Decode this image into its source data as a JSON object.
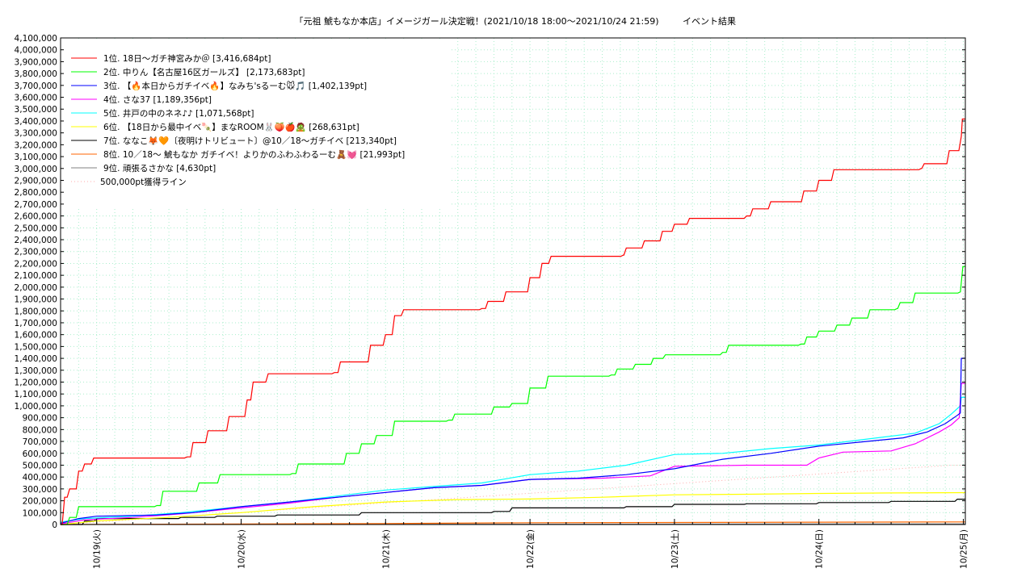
{
  "chart_data": {
    "type": "line",
    "title": "「元祖 鯱もなか本店」イメージガール決定戦！(2021/10/18 18:00～2021/10/24 21:59)",
    "subtitle": "イベント結果",
    "xlabel": "",
    "ylabel": "",
    "xlim": [
      "2021-10-18T18:00",
      "2021-10-25T00:20"
    ],
    "ylim": [
      0,
      4100000
    ],
    "y_ticks": [
      "0",
      "100,000",
      "200,000",
      "300,000",
      "400,000",
      "500,000",
      "600,000",
      "700,000",
      "800,000",
      "900,000",
      "1,000,000",
      "1,100,000",
      "1,200,000",
      "1,300,000",
      "1,400,000",
      "1,500,000",
      "1,600,000",
      "1,700,000",
      "1,800,000",
      "1,900,000",
      "2,000,000",
      "2,100,000",
      "2,200,000",
      "2,300,000",
      "2,400,000",
      "2,500,000",
      "2,600,000",
      "2,700,000",
      "2,800,000",
      "2,900,000",
      "3,000,000",
      "3,100,000",
      "3,200,000",
      "3,300,000",
      "3,400,000",
      "3,500,000",
      "3,600,000",
      "3,700,000",
      "3,800,000",
      "3,900,000",
      "4,000,000",
      "4,100,000"
    ],
    "x_ticks": [
      {
        "label": "10/19(火)",
        "t": "2021-10-19T00:00"
      },
      {
        "label": "10/20(水)",
        "t": "2021-10-20T00:00"
      },
      {
        "label": "10/21(木)",
        "t": "2021-10-21T00:00"
      },
      {
        "label": "10/22(金)",
        "t": "2021-10-22T00:00"
      },
      {
        "label": "10/23(土)",
        "t": "2021-10-23T00:00"
      },
      {
        "label": "10/24(日)",
        "t": "2021-10-24T00:00"
      },
      {
        "label": "10/25(月)",
        "t": "2021-10-25T00:00"
      }
    ],
    "grid": true,
    "legend_position": "top-left",
    "series": [
      {
        "name": "1位. 18日〜ガチ神宮みか＠ [3,416,684pt]",
        "color": "#ff0000",
        "step": true,
        "points": [
          [
            "2021-10-18T18:00",
            0
          ],
          [
            "2021-10-18T18:40",
            230000
          ],
          [
            "2021-10-18T19:30",
            300000
          ],
          [
            "2021-10-18T21:00",
            450000
          ],
          [
            "2021-10-18T22:00",
            510000
          ],
          [
            "2021-10-18T23:30",
            560000
          ],
          [
            "2021-10-19T15:00",
            570000
          ],
          [
            "2021-10-19T16:00",
            690000
          ],
          [
            "2021-10-19T18:30",
            790000
          ],
          [
            "2021-10-19T22:00",
            910000
          ],
          [
            "2021-10-20T01:00",
            1050000
          ],
          [
            "2021-10-20T02:00",
            1200000
          ],
          [
            "2021-10-20T04:30",
            1270000
          ],
          [
            "2021-10-20T15:30",
            1280000
          ],
          [
            "2021-10-20T16:30",
            1370000
          ],
          [
            "2021-10-20T21:30",
            1510000
          ],
          [
            "2021-10-21T00:00",
            1600000
          ],
          [
            "2021-10-21T01:30",
            1760000
          ],
          [
            "2021-10-21T03:00",
            1810000
          ],
          [
            "2021-10-21T16:00",
            1820000
          ],
          [
            "2021-10-21T17:00",
            1880000
          ],
          [
            "2021-10-21T20:00",
            1960000
          ],
          [
            "2021-10-22T00:00",
            2080000
          ],
          [
            "2021-10-22T02:00",
            2200000
          ],
          [
            "2021-10-22T03:30",
            2260000
          ],
          [
            "2021-10-22T15:30",
            2270000
          ],
          [
            "2021-10-22T16:00",
            2330000
          ],
          [
            "2021-10-22T19:00",
            2390000
          ],
          [
            "2021-10-22T22:00",
            2470000
          ],
          [
            "2021-10-23T00:00",
            2530000
          ],
          [
            "2021-10-23T02:30",
            2580000
          ],
          [
            "2021-10-23T12:00",
            2600000
          ],
          [
            "2021-10-23T13:00",
            2660000
          ],
          [
            "2021-10-23T16:00",
            2720000
          ],
          [
            "2021-10-23T21:30",
            2810000
          ],
          [
            "2021-10-24T00:00",
            2900000
          ],
          [
            "2021-10-24T02:30",
            2990000
          ],
          [
            "2021-10-24T17:00",
            3000000
          ],
          [
            "2021-10-24T17:30",
            3040000
          ],
          [
            "2021-10-24T21:40",
            3150000
          ],
          [
            "2021-10-24T23:40",
            3270000
          ],
          [
            "2021-10-24T23:50",
            3416684
          ],
          [
            "2021-10-25T00:20",
            3416684
          ]
        ]
      },
      {
        "name": "2位. 中りん【名古屋16区ガールズ】 [2,173,683pt]",
        "color": "#00ff00",
        "step": true,
        "points": [
          [
            "2021-10-18T18:00",
            0
          ],
          [
            "2021-10-18T19:30",
            60000
          ],
          [
            "2021-10-18T21:00",
            150000
          ],
          [
            "2021-10-19T10:00",
            160000
          ],
          [
            "2021-10-19T11:00",
            280000
          ],
          [
            "2021-10-19T17:00",
            350000
          ],
          [
            "2021-10-19T20:30",
            420000
          ],
          [
            "2021-10-20T08:30",
            430000
          ],
          [
            "2021-10-20T09:30",
            510000
          ],
          [
            "2021-10-20T17:30",
            600000
          ],
          [
            "2021-10-20T20:00",
            680000
          ],
          [
            "2021-10-20T22:30",
            750000
          ],
          [
            "2021-10-21T01:30",
            870000
          ],
          [
            "2021-10-21T10:30",
            880000
          ],
          [
            "2021-10-21T11:30",
            930000
          ],
          [
            "2021-10-21T18:00",
            990000
          ],
          [
            "2021-10-21T21:00",
            1020000
          ],
          [
            "2021-10-22T00:00",
            1150000
          ],
          [
            "2021-10-22T03:00",
            1250000
          ],
          [
            "2021-10-22T13:30",
            1260000
          ],
          [
            "2021-10-22T14:30",
            1310000
          ],
          [
            "2021-10-22T17:30",
            1350000
          ],
          [
            "2021-10-22T20:30",
            1400000
          ],
          [
            "2021-10-22T22:30",
            1430000
          ],
          [
            "2021-10-23T08:00",
            1450000
          ],
          [
            "2021-10-23T09:00",
            1510000
          ],
          [
            "2021-10-23T21:00",
            1520000
          ],
          [
            "2021-10-23T22:00",
            1580000
          ],
          [
            "2021-10-24T00:00",
            1630000
          ],
          [
            "2021-10-24T03:00",
            1680000
          ],
          [
            "2021-10-24T05:30",
            1740000
          ],
          [
            "2021-10-24T08:30",
            1810000
          ],
          [
            "2021-10-24T13:00",
            1820000
          ],
          [
            "2021-10-24T13:30",
            1870000
          ],
          [
            "2021-10-24T16:00",
            1950000
          ],
          [
            "2021-10-24T23:30",
            1960000
          ],
          [
            "2021-10-24T23:55",
            2173683
          ],
          [
            "2021-10-25T00:20",
            2173683
          ]
        ]
      },
      {
        "name": "3位. 【🔥本日からガチイベ🔥】なみち'sるーむ🐭🎵 [1,402,139pt]",
        "color": "#0000ff",
        "step": false,
        "points": [
          [
            "2021-10-18T18:00",
            10000
          ],
          [
            "2021-10-18T21:00",
            50000
          ],
          [
            "2021-10-19T00:00",
            70000
          ],
          [
            "2021-10-19T10:00",
            80000
          ],
          [
            "2021-10-19T16:00",
            100000
          ],
          [
            "2021-10-20T00:00",
            150000
          ],
          [
            "2021-10-20T08:00",
            190000
          ],
          [
            "2021-10-20T16:00",
            230000
          ],
          [
            "2021-10-21T00:00",
            270000
          ],
          [
            "2021-10-21T08:00",
            310000
          ],
          [
            "2021-10-21T16:00",
            330000
          ],
          [
            "2021-10-22T00:00",
            380000
          ],
          [
            "2021-10-22T08:00",
            390000
          ],
          [
            "2021-10-22T16:00",
            420000
          ],
          [
            "2021-10-23T00:00",
            470000
          ],
          [
            "2021-10-23T08:00",
            550000
          ],
          [
            "2021-10-23T16:00",
            600000
          ],
          [
            "2021-10-24T00:00",
            660000
          ],
          [
            "2021-10-24T08:00",
            700000
          ],
          [
            "2021-10-24T14:00",
            730000
          ],
          [
            "2021-10-24T18:00",
            780000
          ],
          [
            "2021-10-24T21:00",
            850000
          ],
          [
            "2021-10-24T23:00",
            920000
          ],
          [
            "2021-10-24T23:30",
            940000
          ],
          [
            "2021-10-24T23:40",
            1400000
          ],
          [
            "2021-10-25T00:20",
            1402139
          ]
        ]
      },
      {
        "name": "4位. さな37 [1,189,356pt]",
        "color": "#ff00ff",
        "step": false,
        "points": [
          [
            "2021-10-18T18:00",
            5000
          ],
          [
            "2021-10-18T22:00",
            40000
          ],
          [
            "2021-10-19T06:00",
            60000
          ],
          [
            "2021-10-19T14:00",
            90000
          ],
          [
            "2021-10-20T00:00",
            140000
          ],
          [
            "2021-10-20T08:00",
            180000
          ],
          [
            "2021-10-20T16:00",
            230000
          ],
          [
            "2021-10-21T00:00",
            270000
          ],
          [
            "2021-10-21T08:00",
            310000
          ],
          [
            "2021-10-21T16:00",
            330000
          ],
          [
            "2021-10-22T00:00",
            380000
          ],
          [
            "2021-10-22T12:00",
            390000
          ],
          [
            "2021-10-22T20:00",
            410000
          ],
          [
            "2021-10-23T00:00",
            490000
          ],
          [
            "2021-10-23T12:00",
            500000
          ],
          [
            "2021-10-23T22:00",
            500000
          ],
          [
            "2021-10-24T00:00",
            560000
          ],
          [
            "2021-10-24T04:00",
            610000
          ],
          [
            "2021-10-24T12:00",
            620000
          ],
          [
            "2021-10-24T16:00",
            680000
          ],
          [
            "2021-10-24T20:00",
            780000
          ],
          [
            "2021-10-24T22:00",
            840000
          ],
          [
            "2021-10-24T23:20",
            900000
          ],
          [
            "2021-10-24T23:40",
            1189356
          ],
          [
            "2021-10-25T00:20",
            1189356
          ]
        ]
      },
      {
        "name": "5位. 井戸の中のネネ♪♪ [1,071,568pt]",
        "color": "#00ffff",
        "step": false,
        "points": [
          [
            "2021-10-18T18:00",
            20000
          ],
          [
            "2021-10-18T22:00",
            50000
          ],
          [
            "2021-10-19T06:00",
            70000
          ],
          [
            "2021-10-19T14:00",
            100000
          ],
          [
            "2021-10-20T00:00",
            150000
          ],
          [
            "2021-10-20T08:00",
            190000
          ],
          [
            "2021-10-20T16:00",
            240000
          ],
          [
            "2021-10-21T00:00",
            290000
          ],
          [
            "2021-10-21T08:00",
            320000
          ],
          [
            "2021-10-21T16:00",
            350000
          ],
          [
            "2021-10-22T00:00",
            420000
          ],
          [
            "2021-10-22T08:00",
            450000
          ],
          [
            "2021-10-22T16:00",
            500000
          ],
          [
            "2021-10-23T00:00",
            590000
          ],
          [
            "2021-10-23T08:00",
            600000
          ],
          [
            "2021-10-23T16:00",
            640000
          ],
          [
            "2021-10-24T00:00",
            670000
          ],
          [
            "2021-10-24T08:00",
            720000
          ],
          [
            "2021-10-24T16:00",
            770000
          ],
          [
            "2021-10-24T20:00",
            850000
          ],
          [
            "2021-10-24T22:00",
            930000
          ],
          [
            "2021-10-24T23:30",
            1000000
          ],
          [
            "2021-10-24T23:40",
            1071568
          ],
          [
            "2021-10-25T00:20",
            1071568
          ]
        ]
      },
      {
        "name": "6位. 【18日から最中イベ🍡】まなROOM🐰🍑🍎🧟 [268,631pt]",
        "color": "#ffff00",
        "step": false,
        "points": [
          [
            "2021-10-18T18:00",
            0
          ],
          [
            "2021-10-19T00:00",
            30000
          ],
          [
            "2021-10-19T12:00",
            60000
          ],
          [
            "2021-10-20T00:00",
            100000
          ],
          [
            "2021-10-20T12:00",
            150000
          ],
          [
            "2021-10-21T00:00",
            190000
          ],
          [
            "2021-10-21T12:00",
            210000
          ],
          [
            "2021-10-22T00:00",
            215000
          ],
          [
            "2021-10-22T12:00",
            230000
          ],
          [
            "2021-10-23T00:00",
            250000
          ],
          [
            "2021-10-23T12:00",
            255000
          ],
          [
            "2021-10-24T00:00",
            262000
          ],
          [
            "2021-10-24T12:00",
            266000
          ],
          [
            "2021-10-25T00:20",
            268631
          ]
        ]
      },
      {
        "name": "7位. ななこ🦊🧡〔夜明けトリビュート〕@10／18〜ガチイベ [213,340pt]",
        "color": "#000000",
        "step": true,
        "points": [
          [
            "2021-10-18T18:00",
            0
          ],
          [
            "2021-10-18T22:00",
            30000
          ],
          [
            "2021-10-19T00:00",
            50000
          ],
          [
            "2021-10-19T14:00",
            60000
          ],
          [
            "2021-10-19T20:00",
            70000
          ],
          [
            "2021-10-20T06:00",
            80000
          ],
          [
            "2021-10-20T20:00",
            100000
          ],
          [
            "2021-10-21T18:00",
            110000
          ],
          [
            "2021-10-21T21:00",
            140000
          ],
          [
            "2021-10-22T16:00",
            150000
          ],
          [
            "2021-10-23T00:00",
            170000
          ],
          [
            "2021-10-23T12:00",
            175000
          ],
          [
            "2021-10-24T00:00",
            185000
          ],
          [
            "2021-10-24T12:00",
            195000
          ],
          [
            "2021-10-24T23:00",
            213340
          ],
          [
            "2021-10-25T00:20",
            213340
          ]
        ]
      },
      {
        "name": "8位. 10／18〜 鯱もなか ガチイベ！よりかのふわふわるーむ🧸💓 [21,993pt]",
        "color": "#ff6600",
        "step": false,
        "points": [
          [
            "2021-10-18T18:00",
            0
          ],
          [
            "2021-10-20T00:00",
            5000
          ],
          [
            "2021-10-21T00:00",
            8000
          ],
          [
            "2021-10-22T00:00",
            15000
          ],
          [
            "2021-10-23T00:00",
            17000
          ],
          [
            "2021-10-24T00:00",
            20000
          ],
          [
            "2021-10-25T00:20",
            21993
          ]
        ]
      },
      {
        "name": "9位. 頑張るさかな [4,630pt]",
        "color": "#808080",
        "step": false,
        "points": [
          [
            "2021-10-18T18:00",
            0
          ],
          [
            "2021-10-21T00:00",
            2000
          ],
          [
            "2021-10-25T00:20",
            4630
          ]
        ]
      }
    ],
    "reference_line": {
      "name": "500,000pt獲得ライン",
      "color": "#ffaaaa",
      "points": [
        [
          "2021-10-18T18:00",
          0
        ],
        [
          "2021-10-24T21:59",
          500000
        ],
        [
          "2021-10-25T00:20",
          500000
        ]
      ]
    }
  }
}
